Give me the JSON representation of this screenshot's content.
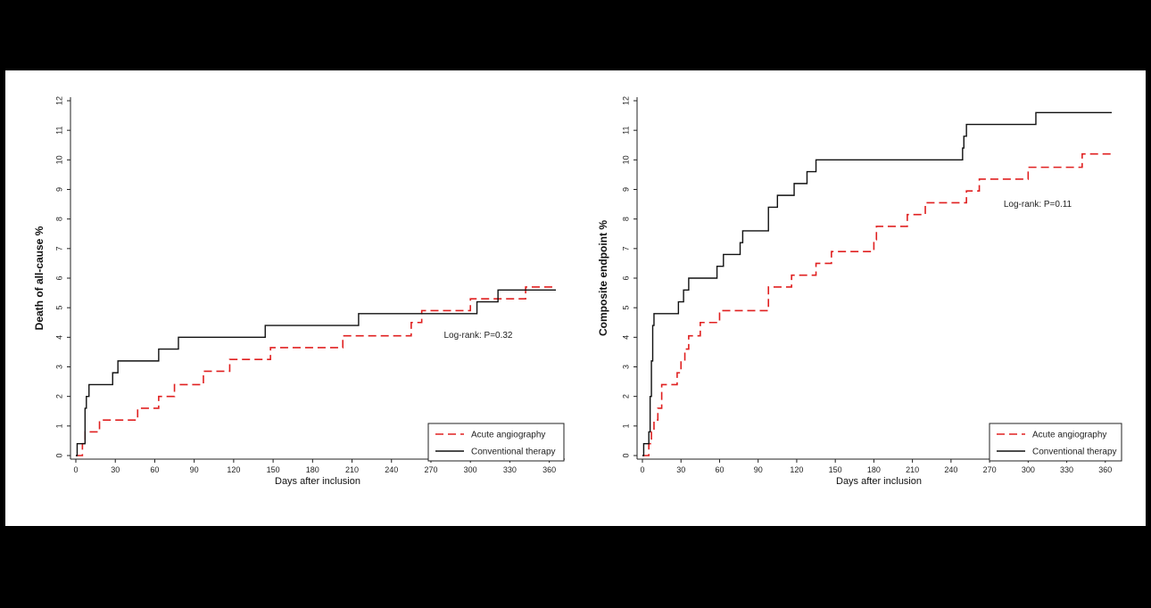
{
  "chart_data": [
    {
      "type": "line",
      "title": "",
      "xlabel": "Days after inclusion",
      "ylabel": "Death of all-cause %",
      "xlim": [
        0,
        365
      ],
      "ylim": [
        0,
        12
      ],
      "xticks": [
        0,
        30,
        60,
        90,
        120,
        150,
        180,
        210,
        240,
        270,
        300,
        330,
        360
      ],
      "yticks": [
        0,
        1,
        2,
        3,
        4,
        5,
        6,
        7,
        8,
        9,
        10,
        11,
        12
      ],
      "annotation": "Log-rank: P=0.32",
      "legend_position": "bottom-right",
      "grid": false,
      "series": [
        {
          "name": "Acute angiography",
          "color": "#e02020",
          "dash": true,
          "x": [
            0,
            5,
            7,
            9,
            18,
            47,
            63,
            75,
            97,
            117,
            148,
            203,
            255,
            263,
            300,
            342,
            365
          ],
          "y": [
            0,
            0.4,
            0.8,
            0.8,
            1.2,
            1.6,
            2.0,
            2.4,
            2.85,
            3.25,
            3.65,
            4.05,
            4.5,
            4.9,
            5.3,
            5.7,
            5.7
          ]
        },
        {
          "name": "Conventional therapy",
          "color": "#111111",
          "dash": false,
          "x": [
            0,
            1,
            6,
            7,
            8,
            10,
            28,
            32,
            63,
            78,
            144,
            215,
            305,
            321,
            365
          ],
          "y": [
            0,
            0.4,
            0.4,
            1.6,
            2.0,
            2.4,
            2.8,
            3.2,
            3.6,
            4.0,
            4.4,
            4.8,
            5.2,
            5.6,
            5.6
          ]
        }
      ]
    },
    {
      "type": "line",
      "title": "",
      "xlabel": "Days after inclusion",
      "ylabel": "Composite endpoint %",
      "xlim": [
        0,
        365
      ],
      "ylim": [
        0,
        12
      ],
      "xticks": [
        0,
        30,
        60,
        90,
        120,
        150,
        180,
        210,
        240,
        270,
        300,
        330,
        360
      ],
      "yticks": [
        0,
        1,
        2,
        3,
        4,
        5,
        6,
        7,
        8,
        9,
        10,
        11,
        12
      ],
      "annotation": "Log-rank: P=0.11",
      "legend_position": "bottom-right",
      "grid": false,
      "series": [
        {
          "name": "Acute angiography",
          "color": "#e02020",
          "dash": true,
          "x": [
            0,
            5,
            7,
            9,
            12,
            15,
            27,
            30,
            33,
            36,
            45,
            60,
            98,
            116,
            135,
            147,
            180,
            182,
            206,
            220,
            252,
            262,
            300,
            322,
            342,
            365
          ],
          "y": [
            0,
            0.4,
            0.8,
            1.2,
            1.6,
            2.4,
            2.8,
            3.2,
            3.6,
            4.05,
            4.5,
            4.9,
            5.7,
            6.1,
            6.5,
            6.9,
            7.3,
            7.75,
            8.15,
            8.55,
            8.95,
            9.35,
            9.75,
            9.75,
            10.2,
            10.2
          ]
        },
        {
          "name": "Conventional therapy",
          "color": "#111111",
          "dash": false,
          "x": [
            0,
            1,
            5,
            6,
            7,
            8,
            9,
            28,
            32,
            36,
            58,
            63,
            76,
            78,
            98,
            105,
            110,
            118,
            128,
            135,
            249,
            250,
            252,
            306,
            365
          ],
          "y": [
            0,
            0.4,
            0.8,
            2.0,
            3.2,
            4.4,
            4.8,
            5.2,
            5.6,
            6.0,
            6.4,
            6.8,
            7.2,
            7.6,
            8.4,
            8.8,
            8.8,
            9.2,
            9.6,
            10.0,
            10.4,
            10.8,
            11.2,
            11.6,
            11.6
          ]
        }
      ]
    }
  ]
}
